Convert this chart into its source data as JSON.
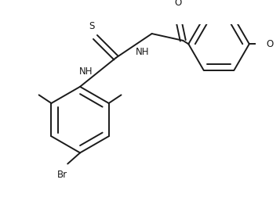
{
  "bg_color": "#ffffff",
  "line_color": "#1a1a1a",
  "font_size": 8.5,
  "lw": 1.4,
  "figsize": [
    3.57,
    2.57
  ],
  "dpi": 100,
  "xlim": [
    0,
    357
  ],
  "ylim": [
    0,
    257
  ]
}
